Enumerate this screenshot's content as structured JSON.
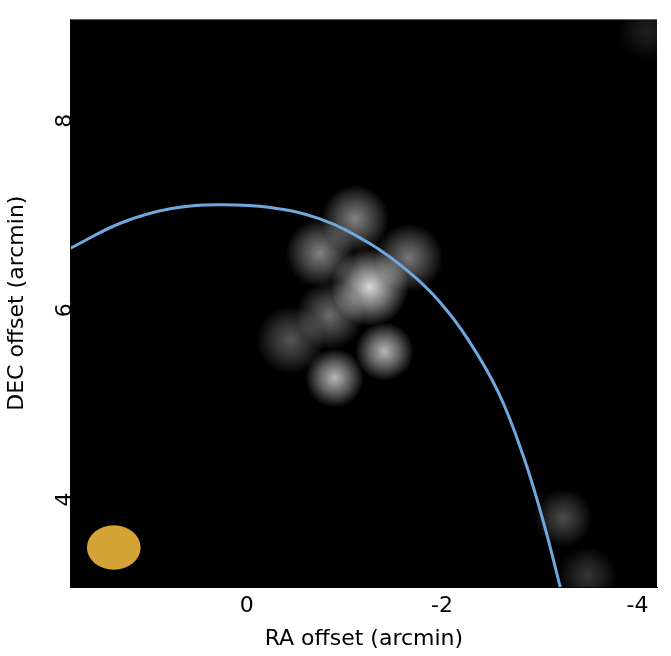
{
  "chart_data": {
    "type": "scatter",
    "x_label": "RA offset (arcmin)",
    "y_label": "DEC offset (arcmin)",
    "xlim": [
      1.8,
      -4.2
    ],
    "ylim": [
      3.0,
      9.0
    ],
    "xticks": [
      0,
      -2,
      -4
    ],
    "yticks": [
      4,
      6,
      8
    ],
    "grid": false,
    "emission": {
      "x": [
        -1.11,
        -1.26,
        -0.75,
        -1.66,
        -1.41,
        -0.9,
        -0.45,
        -0.85,
        -3.24,
        -3.49,
        -4.1
      ],
      "y": [
        6.89,
        6.17,
        6.53,
        6.48,
        5.49,
        5.21,
        5.61,
        5.87,
        3.73,
        3.12,
        8.87
      ],
      "intensity": [
        0.6,
        1.0,
        0.6,
        0.55,
        0.85,
        0.85,
        0.4,
        0.5,
        0.35,
        0.25,
        0.15
      ],
      "sizes": [
        0.35,
        0.4,
        0.35,
        0.35,
        0.3,
        0.3,
        0.35,
        0.35,
        0.3,
        0.3,
        0.3
      ]
    },
    "series": [
      {
        "type": "line",
        "color": "#6fa8dc",
        "line_style": "solid",
        "x": [
          1.807,
          1.28,
          0.77,
          0.28,
          -0.24,
          -0.75,
          -1.26,
          -1.66,
          -1.97,
          -2.27,
          -2.58,
          -2.83,
          -3.04,
          -3.21
        ],
        "values": [
          6.58,
          6.85,
          7.0,
          7.04,
          7.01,
          6.89,
          6.63,
          6.33,
          6.02,
          5.61,
          5.05,
          4.39,
          3.68,
          3.0
        ]
      }
    ],
    "beam": {
      "x": 1.36,
      "y": 3.42,
      "width": 0.55,
      "height": 0.47,
      "color": "#d4a437"
    }
  }
}
